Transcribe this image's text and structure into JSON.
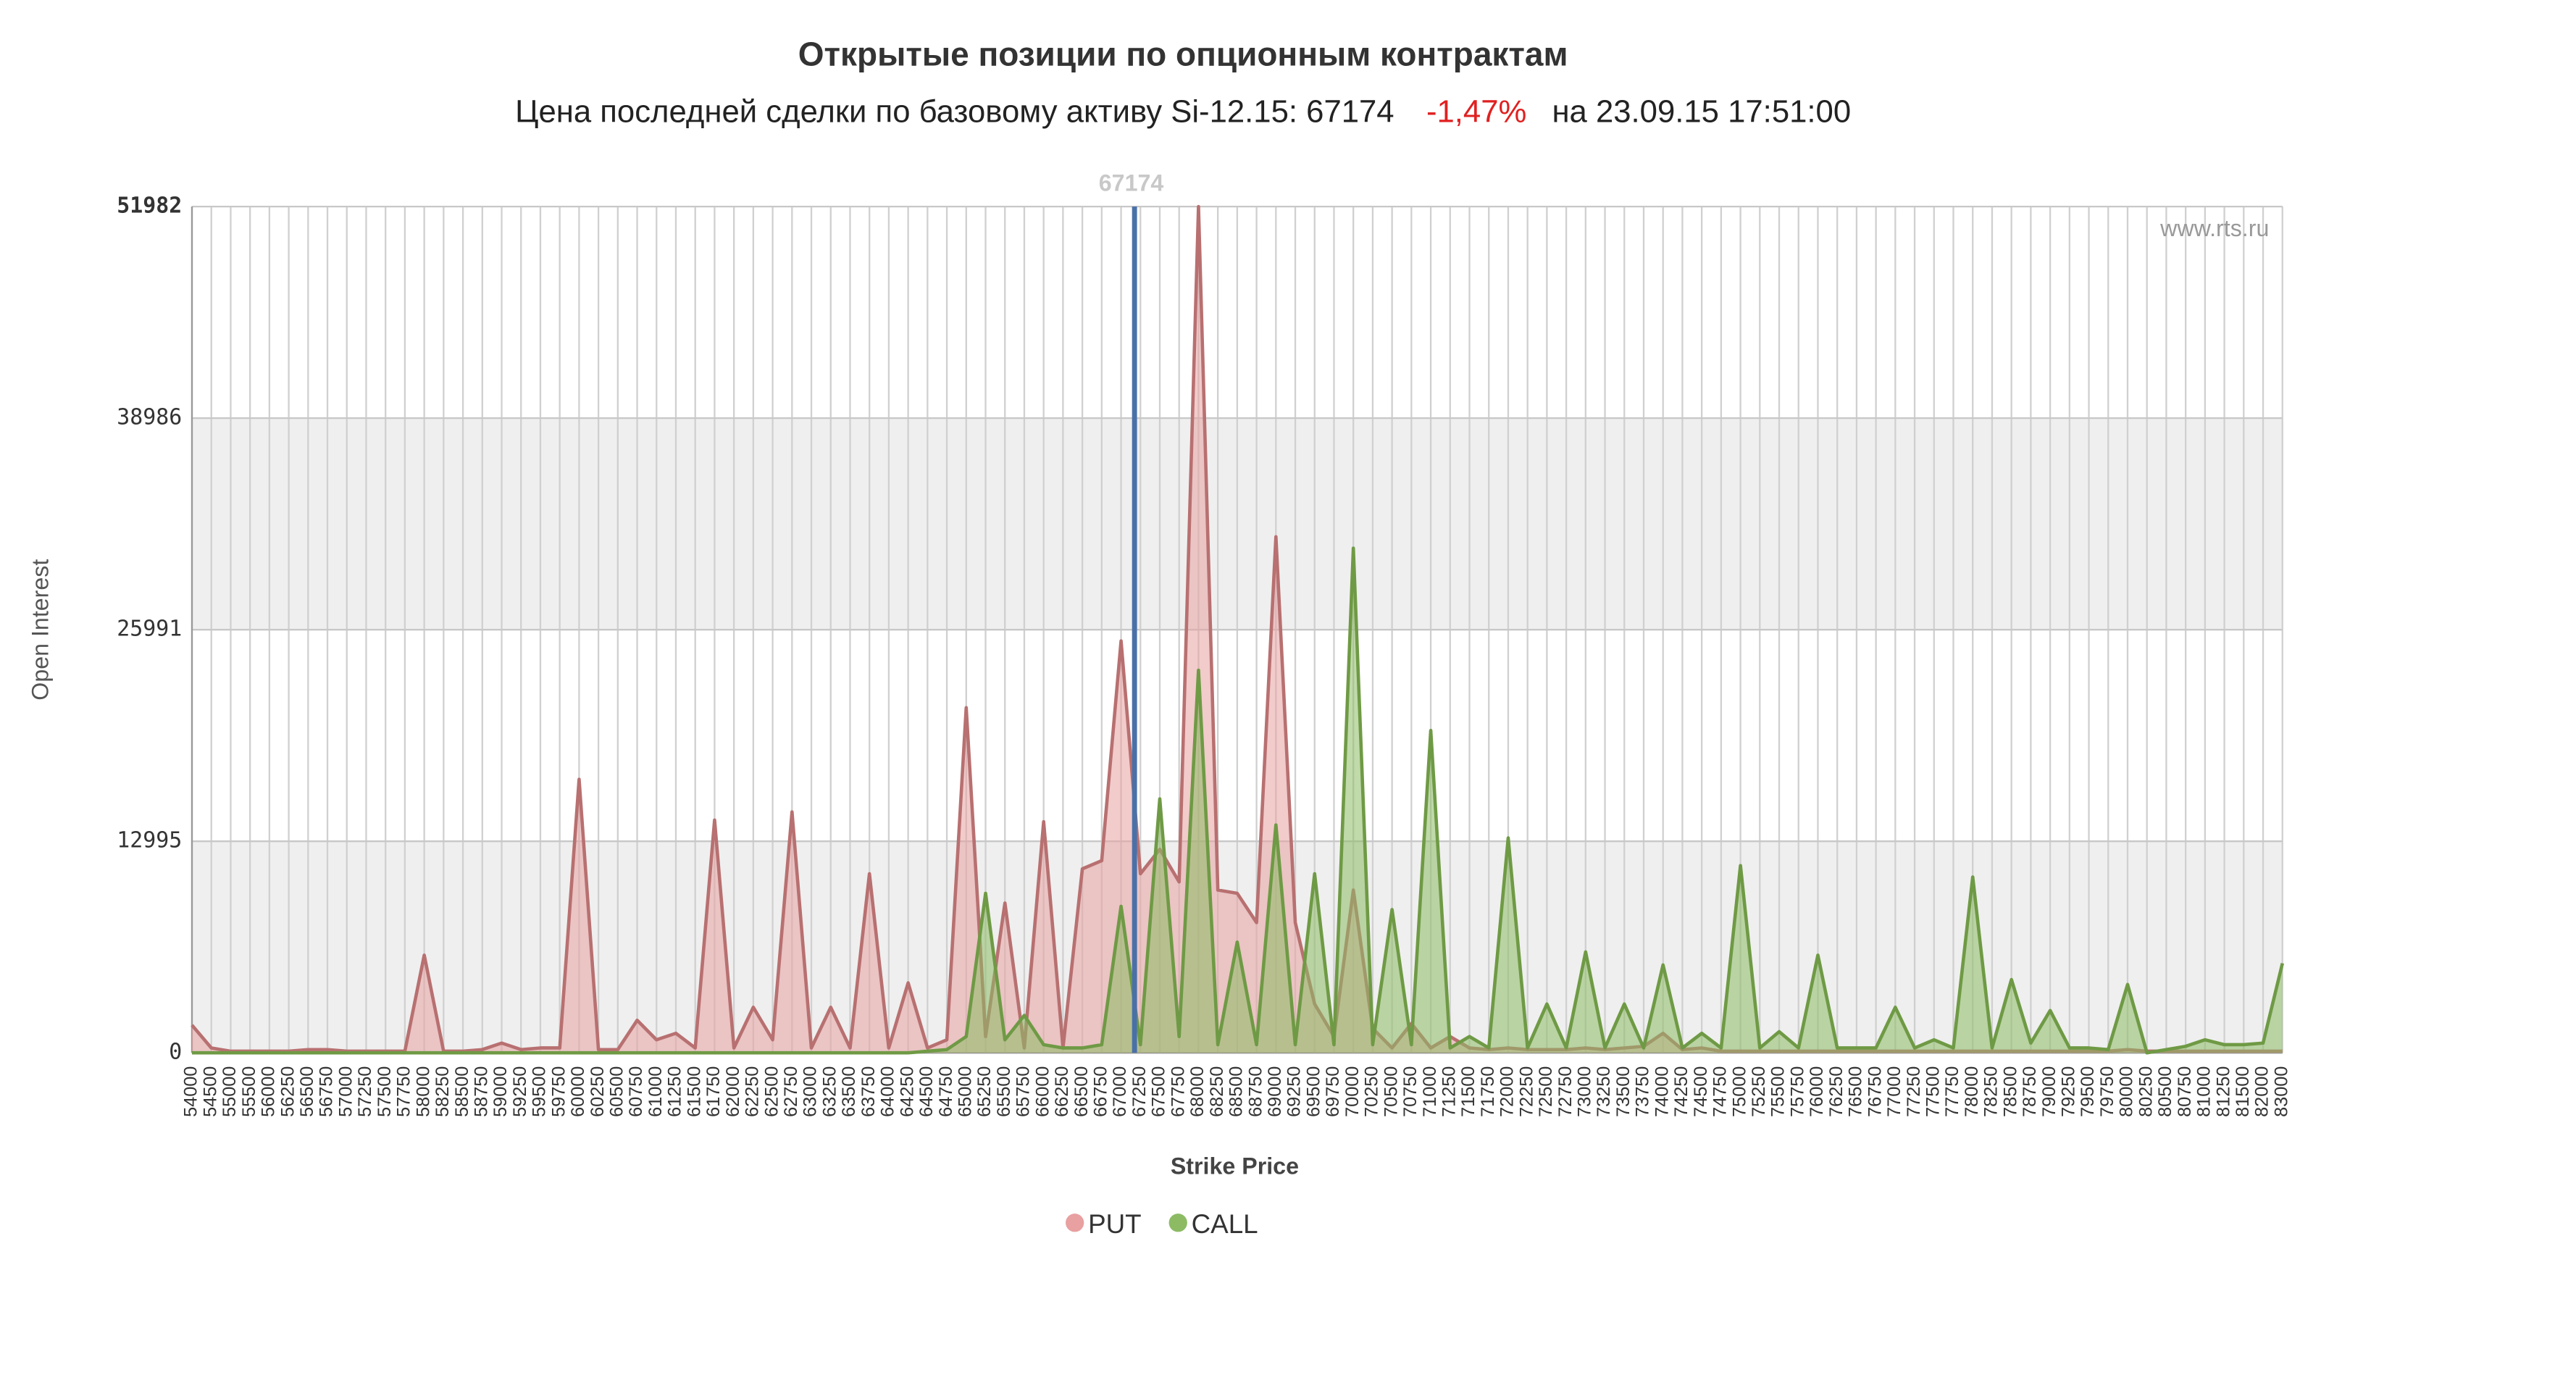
{
  "chart_data": {
    "type": "area",
    "title": "Открытые позиции по опционным контрактам",
    "subtitle": {
      "text": "Цена последней сделки по базовому активу Si-12.15: 67174",
      "change": "-1,47%",
      "time": "на 23.09.15 17:51:00"
    },
    "credit": "www.rts.ru",
    "reference_value": 67174,
    "x_label": "Strike Price",
    "y_label": "Open Interest",
    "categories": [
      54000,
      54500,
      55000,
      55500,
      56000,
      56250,
      56500,
      56750,
      57000,
      57250,
      57500,
      57750,
      58000,
      58250,
      58500,
      58750,
      59000,
      59250,
      59500,
      59750,
      60000,
      60250,
      60500,
      60750,
      61000,
      61250,
      61500,
      61750,
      62000,
      62250,
      62500,
      62750,
      63000,
      63250,
      63500,
      63750,
      64000,
      64250,
      64500,
      64750,
      65000,
      65250,
      65500,
      65750,
      66000,
      66250,
      66500,
      66750,
      67000,
      67250,
      67500,
      67750,
      68000,
      68250,
      68500,
      68750,
      69000,
      69250,
      69500,
      69750,
      70000,
      70250,
      70500,
      70750,
      71000,
      71250,
      71500,
      71750,
      72000,
      72250,
      72500,
      72750,
      73000,
      73250,
      73500,
      73750,
      74000,
      74250,
      74500,
      74750,
      75000,
      75250,
      75500,
      75750,
      76000,
      76250,
      76500,
      76750,
      77000,
      77250,
      77500,
      77750,
      78000,
      78250,
      78500,
      78750,
      79000,
      79250,
      79500,
      79750,
      80000,
      80250,
      80500,
      80750,
      81000,
      81250,
      81500,
      82000,
      83000
    ],
    "series": [
      {
        "name": "PUT",
        "color": "#e8a0a0",
        "stroke": "#b87070",
        "values": [
          1700,
          300,
          100,
          100,
          100,
          100,
          200,
          200,
          100,
          100,
          100,
          100,
          6000,
          100,
          100,
          200,
          600,
          200,
          300,
          300,
          16800,
          200,
          200,
          2000,
          800,
          1200,
          300,
          14300,
          300,
          2800,
          800,
          14800,
          300,
          2800,
          300,
          11000,
          300,
          4300,
          300,
          800,
          21200,
          1000,
          9200,
          300,
          14200,
          300,
          11300,
          11800,
          25300,
          11000,
          12500,
          10500,
          51982,
          10000,
          9800,
          8000,
          31700,
          8000,
          3000,
          1000,
          10000,
          1500,
          300,
          1800,
          300,
          1000,
          300,
          200,
          300,
          200,
          200,
          200,
          300,
          200,
          300,
          400,
          1200,
          200,
          300,
          100,
          100,
          100,
          100,
          100,
          100,
          100,
          100,
          100,
          100,
          100,
          100,
          100,
          100,
          100,
          100,
          100,
          100,
          100,
          100,
          100,
          200,
          100,
          100,
          100,
          100,
          100,
          100,
          100,
          100
        ]
      },
      {
        "name": "CALL",
        "color": "#8cbb64",
        "stroke": "#6f9a45",
        "values": [
          0,
          0,
          0,
          0,
          0,
          0,
          0,
          0,
          0,
          0,
          0,
          0,
          0,
          0,
          0,
          0,
          0,
          0,
          0,
          0,
          0,
          0,
          0,
          0,
          0,
          0,
          0,
          0,
          0,
          0,
          0,
          0,
          0,
          0,
          0,
          0,
          0,
          0,
          100,
          200,
          1000,
          9800,
          800,
          2300,
          500,
          300,
          300,
          500,
          9000,
          500,
          15600,
          1000,
          23500,
          500,
          6800,
          500,
          14000,
          500,
          11000,
          500,
          31000,
          500,
          8800,
          500,
          19800,
          300,
          1000,
          300,
          13200,
          300,
          3000,
          300,
          6200,
          300,
          3000,
          300,
          5400,
          300,
          1200,
          300,
          11500,
          300,
          1300,
          300,
          6000,
          300,
          300,
          300,
          2800,
          300,
          800,
          300,
          10800,
          300,
          4500,
          600,
          2600,
          300,
          300,
          200,
          4200,
          0,
          200,
          400,
          800,
          500,
          500,
          600,
          5500
        ]
      }
    ],
    "ylim": [
      0,
      51982
    ],
    "yticks": [
      0,
      12995,
      25991,
      38986,
      51982
    ],
    "grid": true,
    "legend": "bottom"
  }
}
